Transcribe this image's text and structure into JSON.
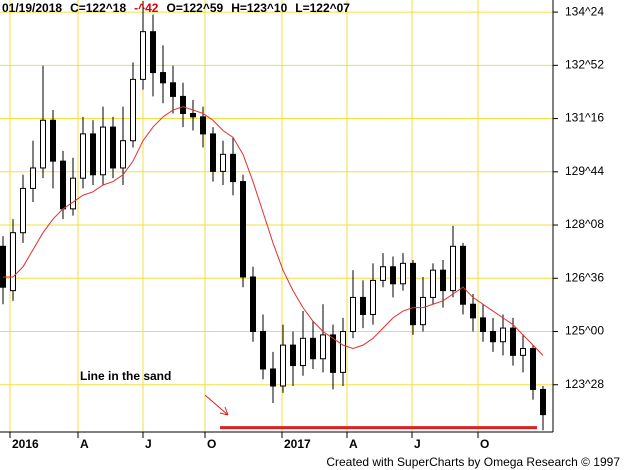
{
  "chart_data": {
    "type": "candlestick",
    "header": [
      {
        "text": "01/19/2018",
        "color": "#000000"
      },
      {
        "text": "C=122^18",
        "color": "#000000"
      },
      {
        "text": "-^42",
        "color": "#e00000"
      },
      {
        "text": "O=122^59",
        "color": "#000000"
      },
      {
        "text": "H=123^10",
        "color": "#000000"
      },
      {
        "text": "L=122^07",
        "color": "#000000"
      }
    ],
    "footer": "Created with SuperCharts by Omega Research © 1997",
    "annotation": {
      "text": "Line in the sand",
      "color": "#e02020"
    },
    "sand_line": {
      "value": 122.18,
      "x": [
        43.4,
        106.8
      ],
      "color": "#e02020"
    },
    "xlim": [
      -0.6,
      110
    ],
    "xticks": [
      {
        "value": 1.4,
        "label": "2016"
      },
      {
        "value": 15,
        "label": "A"
      },
      {
        "value": 28,
        "label": "J"
      },
      {
        "value": 40.4,
        "label": "O"
      },
      {
        "value": 55.8,
        "label": "2017"
      },
      {
        "value": 68.8,
        "label": "A"
      },
      {
        "value": 81.8,
        "label": "J"
      },
      {
        "value": 95,
        "label": "O"
      }
    ],
    "ylim": [
      122.05,
      134.73
    ],
    "yticks": [
      {
        "value": 123.4375,
        "label": "123^28"
      },
      {
        "value": 125,
        "label": "125^00"
      },
      {
        "value": 126.5625,
        "label": "126^36"
      },
      {
        "value": 128.125,
        "label": "128^08"
      },
      {
        "value": 129.6875,
        "label": "129^44"
      },
      {
        "value": 131.25,
        "label": "131^16"
      },
      {
        "value": 132.8125,
        "label": "132^52"
      },
      {
        "value": 134.375,
        "label": "134^24"
      }
    ],
    "grid": true,
    "grid_color": "#f0e040",
    "color": "#000000",
    "x": [
      0,
      2,
      4,
      6,
      8,
      10,
      12,
      14,
      16,
      18,
      20,
      22,
      24,
      26,
      28,
      30,
      32,
      34,
      36,
      38,
      40,
      42,
      44,
      46,
      48,
      50,
      52,
      54,
      56,
      58,
      60,
      62,
      64,
      66,
      68,
      70,
      72,
      74,
      76,
      78,
      80,
      82,
      84,
      86,
      88,
      90,
      92,
      94,
      96,
      98,
      100,
      102,
      104,
      106,
      108
    ],
    "open": [
      127.5,
      126.2,
      127.9,
      129.2,
      129.8,
      131.2,
      130.0,
      128.6,
      129.5,
      130.8,
      129.6,
      131.0,
      129.8,
      130.6,
      132.4,
      133.8,
      132.6,
      132.3,
      131.9,
      131.4,
      131.3,
      130.8,
      129.7,
      130.2,
      129.4,
      126.6,
      125.0,
      123.9,
      123.4,
      124.6,
      124.0,
      124.8,
      124.2,
      124.9,
      123.8,
      125.0,
      126.0,
      125.5,
      126.5,
      126.9,
      126.4,
      127.0,
      125.2,
      126.0,
      126.8,
      126.2,
      127.5,
      125.8,
      125.4,
      125.0,
      124.7,
      125.1,
      124.3,
      124.5,
      123.3
    ],
    "high": [
      127.8,
      128.3,
      129.6,
      130.6,
      132.8,
      131.5,
      130.3,
      130.1,
      131.3,
      131.2,
      131.6,
      131.3,
      131.6,
      132.9,
      134.7,
      134.3,
      133.4,
      132.8,
      132.3,
      131.8,
      131.6,
      131.0,
      130.6,
      130.7,
      129.6,
      126.9,
      125.5,
      124.4,
      125.2,
      125.0,
      125.6,
      125.3,
      125.8,
      125.2,
      125.4,
      126.8,
      126.5,
      127.0,
      127.3,
      127.2,
      127.3,
      127.1,
      126.6,
      127.0,
      127.1,
      128.1,
      127.6,
      126.1,
      125.8,
      125.4,
      125.5,
      125.4,
      124.9,
      124.6,
      123.4
    ],
    "low": [
      125.8,
      125.9,
      127.6,
      128.8,
      129.5,
      129.2,
      128.3,
      128.4,
      129.2,
      129.3,
      129.3,
      129.5,
      129.3,
      130.4,
      132.1,
      131.9,
      131.7,
      131.4,
      131.0,
      130.9,
      130.4,
      129.4,
      129.3,
      129.0,
      126.3,
      124.7,
      123.6,
      122.9,
      123.2,
      123.4,
      123.7,
      123.9,
      123.8,
      123.3,
      123.4,
      124.8,
      125.1,
      125.2,
      126.3,
      126.0,
      126.2,
      124.9,
      125.0,
      125.8,
      125.7,
      126.0,
      125.5,
      125.0,
      124.7,
      124.4,
      124.3,
      124.0,
      123.8,
      123.0,
      122.1
    ],
    "close": [
      126.3,
      127.9,
      129.2,
      129.8,
      131.2,
      130.0,
      128.6,
      129.5,
      130.8,
      129.6,
      131.0,
      129.8,
      130.6,
      132.4,
      133.8,
      132.6,
      132.3,
      131.9,
      131.4,
      131.3,
      130.8,
      129.7,
      130.2,
      129.4,
      126.6,
      125.0,
      123.9,
      123.4,
      124.6,
      124.0,
      124.8,
      124.2,
      124.9,
      123.8,
      125.0,
      126.0,
      125.5,
      126.5,
      126.9,
      126.4,
      127.0,
      125.2,
      126.0,
      126.8,
      126.2,
      127.5,
      125.8,
      125.4,
      125.0,
      124.7,
      125.1,
      124.3,
      124.5,
      123.3,
      122.56
    ],
    "ma": {
      "color": "#e03030",
      "values": [
        126.6,
        126.6,
        126.9,
        127.4,
        127.9,
        128.3,
        128.6,
        128.8,
        129.0,
        129.1,
        129.3,
        129.4,
        129.6,
        130.0,
        130.6,
        131.0,
        131.3,
        131.5,
        131.6,
        131.5,
        131.4,
        131.2,
        130.9,
        130.7,
        130.2,
        129.4,
        128.5,
        127.6,
        126.8,
        126.2,
        125.7,
        125.3,
        125.0,
        124.8,
        124.6,
        124.5,
        124.6,
        124.8,
        125.1,
        125.4,
        125.6,
        125.7,
        125.7,
        125.8,
        125.9,
        126.1,
        126.3,
        126.0,
        125.8,
        125.6,
        125.4,
        125.2,
        124.9,
        124.6,
        124.3
      ]
    }
  }
}
